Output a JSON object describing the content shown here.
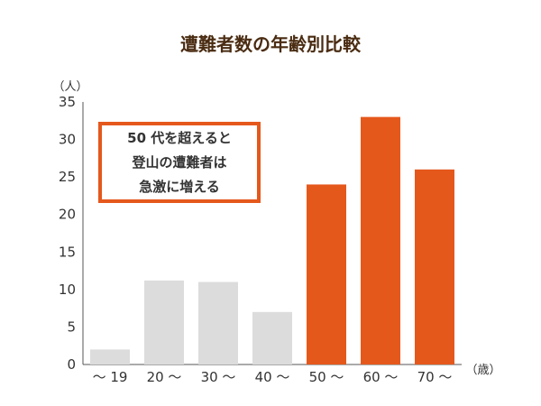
{
  "chart_data": {
    "type": "bar",
    "title": "遭難者数の年齢別比較",
    "ylabel": "（人）",
    "xlabel": "（歳）",
    "categories": [
      "～ 19",
      "20 ～",
      "30 ～",
      "40 ～",
      "50 ～",
      "60 ～",
      "70 ～"
    ],
    "values": [
      2,
      11.2,
      11,
      7,
      24,
      33,
      26
    ],
    "highlight": [
      false,
      false,
      false,
      false,
      true,
      true,
      true
    ],
    "ylim": [
      0,
      35
    ],
    "yticks": [
      0,
      5,
      10,
      15,
      20,
      25,
      30,
      35
    ],
    "grid": false,
    "colors": {
      "normal": "#dcdcdc",
      "highlight": "#e5581c"
    },
    "annotation": [
      "50 代を超えると",
      "登山の遭難者は",
      "急激に増える"
    ]
  }
}
